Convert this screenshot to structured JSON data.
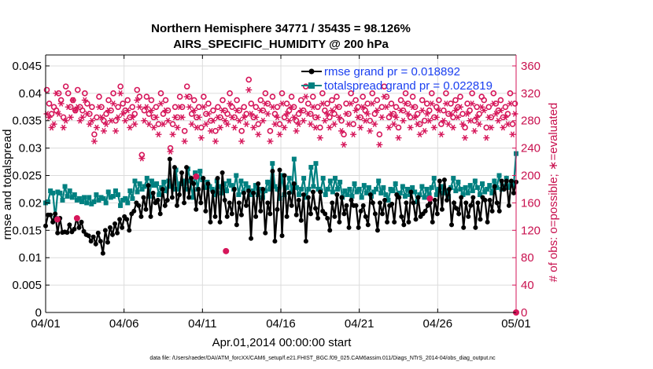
{
  "chart_data": {
    "type": "line",
    "title": "Northern Hemisphere 34771 / 35435 = 98.126%",
    "subtitle": "AIRS_SPECIFIC_HUMIDITY @ 200 hPa",
    "xlabel": "Apr.01,2014 00:00:00 start",
    "ylabel": "rmse and totalspread",
    "y2label": "# of obs: o=possible; ∗=evaluated",
    "xlim": [
      0,
      30
    ],
    "ylim": [
      0,
      0.047
    ],
    "y2lim": [
      0,
      376
    ],
    "x_ticks": [
      0,
      5,
      10,
      15,
      20,
      25,
      30
    ],
    "x_tick_labels": [
      "04/01",
      "04/06",
      "04/11",
      "04/16",
      "04/21",
      "04/26",
      "05/01"
    ],
    "y_ticks": [
      "0",
      "0.005",
      "0.01",
      "0.015",
      "0.02",
      "0.025",
      "0.03",
      "0.035",
      "0.04",
      "0.045"
    ],
    "y2_ticks": [
      "0",
      "40",
      "80",
      "120",
      "160",
      "200",
      "240",
      "280",
      "320",
      "360"
    ],
    "grid": true,
    "legend_position": "top-right",
    "footnote": "data file: /Users/raeder/DAI/ATM_forcXX/CAM6_setup/f.e21.FHIST_BGC.f09_025.CAM6assim.011/Diags_NTrS_2014-04/obs_diag_output.nc",
    "colors": {
      "rmse": "#000000",
      "spread": "#008080",
      "obs": "#d6165a"
    },
    "series": [
      {
        "name": "rmse grand pr = 0.018892",
        "values": [
          0.0158,
          0.0178,
          0.0178,
          0.0165,
          0.018,
          0.0145,
          0.0172,
          0.0146,
          0.0147,
          0.0146,
          0.016,
          0.0147,
          0.0152,
          0.0172,
          0.0155,
          0.0165,
          0.0148,
          0.0142,
          0.014,
          0.013,
          0.0138,
          0.0125,
          0.0145,
          0.013,
          0.0108,
          0.015,
          0.0128,
          0.0155,
          0.0142,
          0.0162,
          0.0145,
          0.017,
          0.0155,
          0.0175,
          0.017,
          0.015,
          0.018,
          0.0185,
          0.02,
          0.0195,
          0.0175,
          0.021,
          0.0188,
          0.0232,
          0.0175,
          0.0218,
          0.02,
          0.0205,
          0.018,
          0.0225,
          0.0195,
          0.0205,
          0.028,
          0.021,
          0.0265,
          0.0195,
          0.0215,
          0.0255,
          0.02,
          0.0265,
          0.021,
          0.0245,
          0.0235,
          0.0188,
          0.0225,
          0.02,
          0.0245,
          0.0185,
          0.0235,
          0.0165,
          0.022,
          0.0175,
          0.0245,
          0.0165,
          0.0255,
          0.0205,
          0.0175,
          0.02,
          0.018,
          0.0225,
          0.016,
          0.02,
          0.0178,
          0.0218,
          0.0195,
          0.0222,
          0.0135,
          0.0218,
          0.0175,
          0.0235,
          0.0185,
          0.0225,
          0.0145,
          0.02,
          0.018,
          0.0258,
          0.013,
          0.0188,
          0.026,
          0.014,
          0.025,
          0.0175,
          0.0218,
          0.0195,
          0.0235,
          0.0178,
          0.0205,
          0.0168,
          0.0215,
          0.013,
          0.021,
          0.018,
          0.022,
          0.019,
          0.0172,
          0.022,
          0.0185,
          0.018,
          0.0172,
          0.015,
          0.02,
          0.0175,
          0.0215,
          0.0165,
          0.021,
          0.018,
          0.0195,
          0.0155,
          0.0205,
          0.0195,
          0.0195,
          0.0155,
          0.0185,
          0.0195,
          0.0175,
          0.016,
          0.0215,
          0.02,
          0.018,
          0.015,
          0.02,
          0.018,
          0.0205,
          0.0165,
          0.0195,
          0.0198,
          0.0165,
          0.0215,
          0.021,
          0.0175,
          0.016,
          0.02,
          0.0165,
          0.022,
          0.02,
          0.017,
          0.021,
          0.0175,
          0.018,
          0.0185,
          0.0195,
          0.02,
          0.0165,
          0.0205,
          0.018,
          0.024,
          0.0188,
          0.0242,
          0.0205,
          0.0225,
          0.016,
          0.02,
          0.019,
          0.018,
          0.021,
          0.0155,
          0.02,
          0.0175,
          0.0195,
          0.021,
          0.0155,
          0.02,
          0.017,
          0.021,
          0.0205,
          0.0165,
          0.0205,
          0.0185,
          0.023,
          0.02,
          0.0185,
          0.024,
          0.0225,
          0.024,
          0.0195,
          0.024,
          0.0218,
          0.0238
        ]
      },
      {
        "name": "totalspread grand pr = 0.022819",
        "values": [
          0.02,
          0.0202,
          0.0222,
          0.0218,
          0.0172,
          0.022,
          0.0218,
          0.0205,
          0.023,
          0.0212,
          0.0222,
          0.021,
          0.0215,
          0.0205,
          0.0208,
          0.0202,
          0.021,
          0.02,
          0.021,
          0.0198,
          0.0202,
          0.0215,
          0.0205,
          0.021,
          0.0208,
          0.02,
          0.022,
          0.021,
          0.0212,
          0.0222,
          0.0215,
          0.0195,
          0.0205,
          0.0208,
          0.02,
          0.0222,
          0.0208,
          0.024,
          0.022,
          0.0235,
          0.0225,
          0.023,
          0.0245,
          0.0212,
          0.024,
          0.0232,
          0.0235,
          0.0215,
          0.0228,
          0.0238,
          0.0222,
          0.024,
          0.023,
          0.0225,
          0.026,
          0.0225,
          0.0235,
          0.024,
          0.0225,
          0.0262,
          0.024,
          0.021,
          0.0255,
          0.0225,
          0.0258,
          0.0242,
          0.0228,
          0.0238,
          0.023,
          0.0225,
          0.0215,
          0.024,
          0.023,
          0.0218,
          0.0235,
          0.0222,
          0.024,
          0.0232,
          0.0225,
          0.025,
          0.0215,
          0.024,
          0.022,
          0.0235,
          0.0228,
          0.0215,
          0.0222,
          0.0232,
          0.0215,
          0.0225,
          0.021,
          0.0222,
          0.0238,
          0.0225,
          0.0272,
          0.023,
          0.0225,
          0.0208,
          0.025,
          0.0215,
          0.0228,
          0.0245,
          0.022,
          0.028,
          0.0228,
          0.0215,
          0.0225,
          0.0245,
          0.021,
          0.0225,
          0.0265,
          0.023,
          0.0272,
          0.0225,
          0.0222,
          0.0245,
          0.0215,
          0.0225,
          0.024,
          0.022,
          0.0245,
          0.0225,
          0.0238,
          0.021,
          0.0222,
          0.0215,
          0.0225,
          0.0212,
          0.0235,
          0.022,
          0.0225,
          0.021,
          0.0232,
          0.0218,
          0.0228,
          0.0212,
          0.022,
          0.0225,
          0.024,
          0.0218,
          0.0228,
          0.0215,
          0.0205,
          0.0225,
          0.0222,
          0.0235,
          0.0215,
          0.0218,
          0.023,
          0.0212,
          0.0225,
          0.0215,
          0.0228,
          0.022,
          0.0202,
          0.0215,
          0.023,
          0.021,
          0.0225,
          0.0215,
          0.0228,
          0.0245,
          0.0215,
          0.0225,
          0.023,
          0.0218,
          0.0222,
          0.0212,
          0.0228,
          0.0245,
          0.0222,
          0.0238,
          0.0225,
          0.0215,
          0.0228,
          0.0218,
          0.0232,
          0.0222,
          0.024,
          0.0228,
          0.0215,
          0.0235,
          0.022,
          0.0225,
          0.0232,
          0.0218,
          0.024,
          0.0228,
          0.025,
          0.0225,
          0.023,
          0.0245,
          0.0228,
          0.0235,
          0.0232,
          0.029
        ]
      }
    ],
    "obs_possible": [
      325,
      305,
      290,
      300,
      295,
      320,
      310,
      285,
      330,
      320,
      300,
      310,
      295,
      325,
      300,
      295,
      320,
      305,
      290,
      300,
      260,
      285,
      315,
      300,
      280,
      290,
      310,
      295,
      320,
      280,
      300,
      330,
      305,
      295,
      310,
      285,
      300,
      290,
      325,
      315,
      230,
      295,
      315,
      290,
      310,
      285,
      300,
      275,
      320,
      290,
      310,
      295,
      240,
      275,
      300,
      285,
      315,
      300,
      265,
      330,
      315,
      290,
      310,
      285,
      300,
      270,
      315,
      290,
      305,
      280,
      295,
      265,
      300,
      285,
      310,
      295,
      290,
      320,
      300,
      285,
      310,
      295,
      265,
      300,
      290,
      340,
      305,
      285,
      300,
      275,
      310,
      295,
      320,
      305,
      265,
      315,
      290,
      300,
      275,
      320,
      285,
      305,
      295,
      315,
      300,
      280,
      290,
      310,
      295,
      330,
      305,
      290,
      315,
      285,
      300,
      270,
      320,
      295,
      305,
      285,
      310,
      290,
      315,
      300,
      280,
      260,
      305,
      290,
      320,
      275,
      310,
      300,
      285,
      315,
      295,
      305,
      280,
      320,
      290,
      310,
      260,
      300,
      330,
      315,
      285,
      305,
      290,
      300,
      270,
      310,
      295,
      320,
      305,
      285,
      315,
      300,
      290,
      275,
      310,
      280,
      305,
      295,
      320,
      285,
      300,
      310,
      275,
      295,
      320,
      290,
      305,
      285,
      310,
      300,
      315,
      290,
      270,
      305,
      295,
      320,
      280,
      300,
      290,
      315,
      310,
      270,
      300,
      285,
      320,
      305,
      295,
      310,
      285,
      300,
      290,
      320,
      275,
      305
    ],
    "obs_evaluated": [
      290,
      285,
      270,
      275,
      320,
      290,
      305,
      270,
      280,
      300,
      285,
      310,
      295,
      300,
      280,
      285,
      310,
      290,
      275,
      280,
      250,
      270,
      300,
      285,
      265,
      275,
      295,
      280,
      305,
      265,
      285,
      320,
      290,
      280,
      295,
      270,
      285,
      275,
      310,
      300,
      225,
      280,
      300,
      275,
      295,
      270,
      285,
      260,
      305,
      275,
      295,
      280,
      235,
      260,
      285,
      270,
      300,
      285,
      250,
      315,
      300,
      275,
      295,
      270,
      285,
      255,
      300,
      275,
      290,
      265,
      280,
      250,
      285,
      270,
      295,
      280,
      275,
      305,
      285,
      270,
      295,
      280,
      250,
      285,
      275,
      325,
      290,
      270,
      285,
      260,
      295,
      280,
      305,
      290,
      250,
      300,
      275,
      285,
      260,
      305,
      270,
      290,
      280,
      300,
      285,
      265,
      275,
      295,
      280,
      315,
      290,
      275,
      300,
      270,
      285,
      255,
      305,
      280,
      290,
      270,
      295,
      275,
      300,
      285,
      265,
      245,
      290,
      275,
      305,
      260,
      295,
      285,
      270,
      300,
      280,
      290,
      265,
      305,
      275,
      295,
      245,
      285,
      315,
      300,
      270,
      290,
      275,
      285,
      255,
      295,
      280,
      305,
      290,
      270,
      300,
      285,
      275,
      260,
      295,
      265,
      290,
      280,
      305,
      270,
      285,
      295,
      260,
      280,
      305,
      275,
      290,
      270,
      295,
      285,
      300,
      275,
      255,
      290,
      280,
      305,
      265,
      285,
      275,
      300,
      295,
      255,
      285,
      270,
      305,
      290,
      280,
      295,
      270,
      285,
      275,
      305,
      260,
      290
    ],
    "obs_low_x": [
      0.75,
      2.0,
      9.6,
      11.5,
      24.5,
      30.0
    ],
    "obs_low_y": [
      0.017,
      0.0172,
      0.0248,
      0.0112,
      0.0208,
      0.0
    ]
  }
}
